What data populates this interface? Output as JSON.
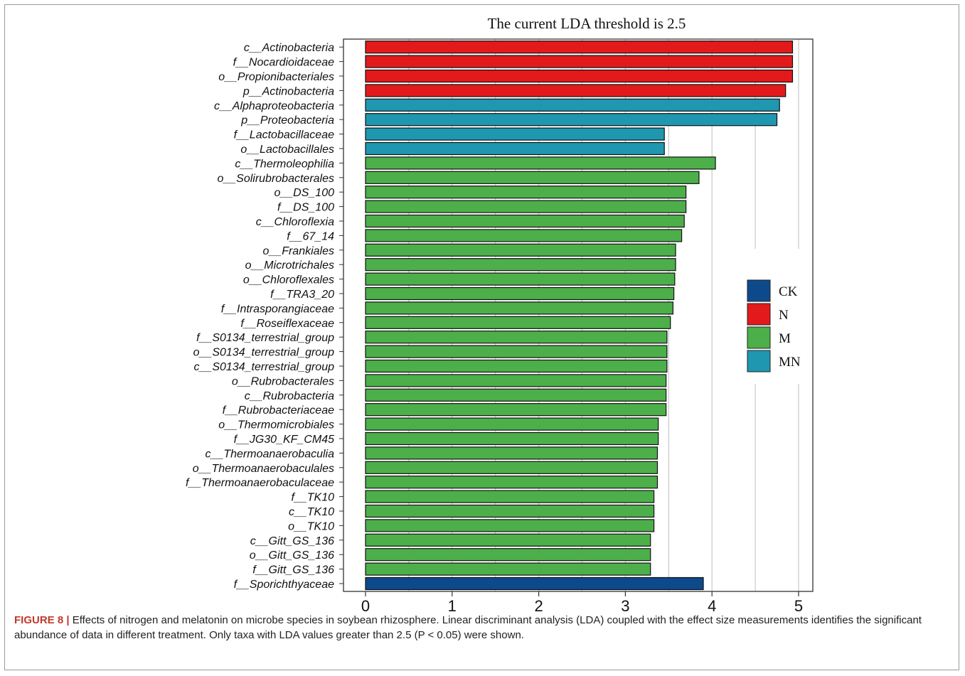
{
  "chart_data": {
    "type": "bar",
    "orientation": "horizontal",
    "title": "The current LDA threshold is 2.5",
    "xlabel": "",
    "ylabel": "",
    "xlim": [
      0,
      5.2
    ],
    "xticks": [
      0,
      1,
      2,
      3,
      4,
      5
    ],
    "grid": true,
    "legend_position": "right",
    "groups": [
      {
        "name": "CK",
        "color": "#0d4a8c"
      },
      {
        "name": "N",
        "color": "#e31a1c"
      },
      {
        "name": "M",
        "color": "#4daf4a"
      },
      {
        "name": "MN",
        "color": "#1f97b0"
      }
    ],
    "bars": [
      {
        "label": "c__Actinobacteria",
        "value": 4.93,
        "group": "N"
      },
      {
        "label": "f__Nocardioidaceae",
        "value": 4.93,
        "group": "N"
      },
      {
        "label": "o__Propionibacteriales",
        "value": 4.93,
        "group": "N"
      },
      {
        "label": "p__Actinobacteria",
        "value": 4.85,
        "group": "N"
      },
      {
        "label": "c__Alphaproteobacteria",
        "value": 4.78,
        "group": "MN"
      },
      {
        "label": "p__Proteobacteria",
        "value": 4.75,
        "group": "MN"
      },
      {
        "label": "f__Lactobacillaceae",
        "value": 3.45,
        "group": "MN"
      },
      {
        "label": "o__Lactobacillales",
        "value": 3.45,
        "group": "MN"
      },
      {
        "label": "c__Thermoleophilia",
        "value": 4.04,
        "group": "M"
      },
      {
        "label": "o__Solirubrobacterales",
        "value": 3.85,
        "group": "M"
      },
      {
        "label": "o__DS_100",
        "value": 3.7,
        "group": "M"
      },
      {
        "label": "f__DS_100",
        "value": 3.7,
        "group": "M"
      },
      {
        "label": "c__Chloroflexia",
        "value": 3.68,
        "group": "M"
      },
      {
        "label": "f__67_14",
        "value": 3.65,
        "group": "M"
      },
      {
        "label": "o__Frankiales",
        "value": 3.58,
        "group": "M"
      },
      {
        "label": "o__Microtrichales",
        "value": 3.58,
        "group": "M"
      },
      {
        "label": "o__Chloroflexales",
        "value": 3.57,
        "group": "M"
      },
      {
        "label": "f__TRA3_20",
        "value": 3.56,
        "group": "M"
      },
      {
        "label": "f__Intrasporangiaceae",
        "value": 3.55,
        "group": "M"
      },
      {
        "label": "f__Roseiflexaceae",
        "value": 3.52,
        "group": "M"
      },
      {
        "label": "f__S0134_terrestrial_group",
        "value": 3.48,
        "group": "M"
      },
      {
        "label": "o__S0134_terrestrial_group",
        "value": 3.48,
        "group": "M"
      },
      {
        "label": "c__S0134_terrestrial_group",
        "value": 3.48,
        "group": "M"
      },
      {
        "label": "o__Rubrobacterales",
        "value": 3.47,
        "group": "M"
      },
      {
        "label": "c__Rubrobacteria",
        "value": 3.47,
        "group": "M"
      },
      {
        "label": "f__Rubrobacteriaceae",
        "value": 3.47,
        "group": "M"
      },
      {
        "label": "o__Thermomicrobiales",
        "value": 3.38,
        "group": "M"
      },
      {
        "label": "f__JG30_KF_CM45",
        "value": 3.38,
        "group": "M"
      },
      {
        "label": "c__Thermoanaerobaculia",
        "value": 3.37,
        "group": "M"
      },
      {
        "label": "o__Thermoanaerobaculales",
        "value": 3.37,
        "group": "M"
      },
      {
        "label": "f__Thermoanaerobaculaceae",
        "value": 3.37,
        "group": "M"
      },
      {
        "label": "f__TK10",
        "value": 3.33,
        "group": "M"
      },
      {
        "label": "c__TK10",
        "value": 3.33,
        "group": "M"
      },
      {
        "label": "o__TK10",
        "value": 3.33,
        "group": "M"
      },
      {
        "label": "c__Gitt_GS_136",
        "value": 3.29,
        "group": "M"
      },
      {
        "label": "o__Gitt_GS_136",
        "value": 3.29,
        "group": "M"
      },
      {
        "label": "f__Gitt_GS_136",
        "value": 3.29,
        "group": "M"
      },
      {
        "label": "f__Sporichthyaceae",
        "value": 3.9,
        "group": "CK"
      }
    ]
  },
  "caption": {
    "label": "FIGURE 8 |",
    "text": " Effects of nitrogen and melatonin on microbe species in soybean rhizosphere. Linear discriminant analysis (LDA) coupled with the effect size measurements identifies the significant abundance of data in different treatment. Only taxa with LDA values greater than 2.5 (P < 0.05) were shown."
  }
}
